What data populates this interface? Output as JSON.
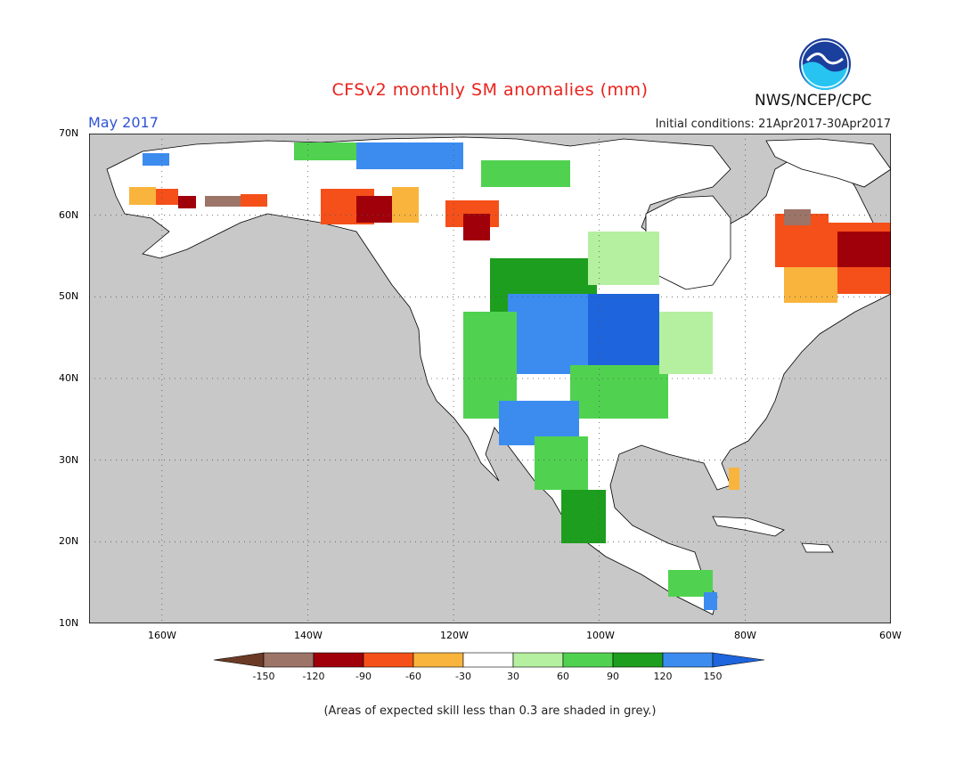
{
  "header": {
    "title": "CFSv2 monthly SM anomalies (mm)",
    "month": "May 2017",
    "initial_conditions": "Initial conditions: 21Apr2017-30Apr2017",
    "agency": "NWS/NCEP/CPC",
    "logo_text": "NOAA"
  },
  "map": {
    "lat_labels": [
      "70N",
      "60N",
      "50N",
      "40N",
      "30N",
      "20N",
      "10N"
    ],
    "lon_labels": [
      "160W",
      "140W",
      "120W",
      "100W",
      "80W",
      "60W"
    ],
    "lat_range": [
      10,
      70
    ],
    "lon_range": [
      -170,
      -60
    ],
    "background_color": "#c8c8c8",
    "land_color": "#ffffff",
    "grid": "dotted"
  },
  "legend": {
    "labels": [
      "-150",
      "-120",
      "-90",
      "-60",
      "-30",
      "30",
      "60",
      "90",
      "120",
      "150"
    ],
    "colors": [
      "#6b3a26",
      "#9c7468",
      "#a0000a",
      "#f5501a",
      "#f8b43c",
      "#ffffff",
      "#b4f0a0",
      "#50d250",
      "#1e9e1e",
      "#3c8cf0",
      "#1e64dc"
    ]
  },
  "footnote": "(Areas of expected skill less than 0.3 are shaded in grey.)"
}
